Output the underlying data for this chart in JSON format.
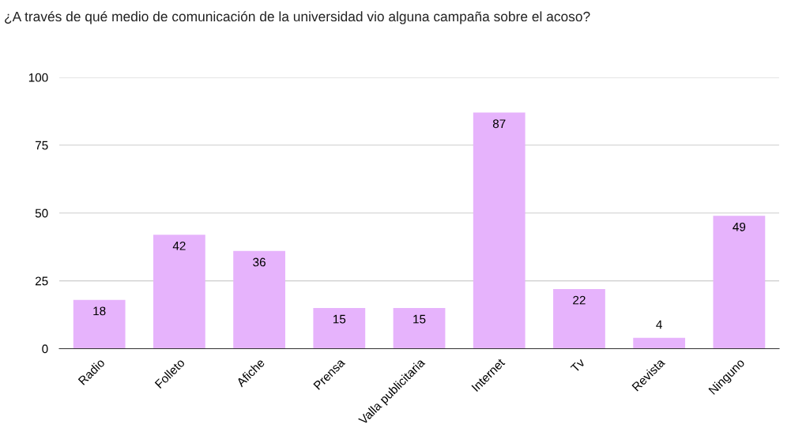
{
  "chart_data": {
    "type": "bar",
    "title": "¿A través de qué medio de comunicación de la universidad vio alguna campaña sobre el acoso?",
    "categories": [
      "Radio",
      "Folleto",
      "Afiche",
      "Prensa",
      "Valla publicitaria",
      "Internet",
      "Tv",
      "Revista",
      "Ninguno"
    ],
    "values": [
      18,
      42,
      36,
      15,
      15,
      87,
      22,
      4,
      49
    ],
    "color": "#e6b3fc",
    "ylim": [
      0,
      100
    ],
    "yticks": [
      0,
      25,
      50,
      75,
      100
    ],
    "grid": "y",
    "data_labels": true
  }
}
